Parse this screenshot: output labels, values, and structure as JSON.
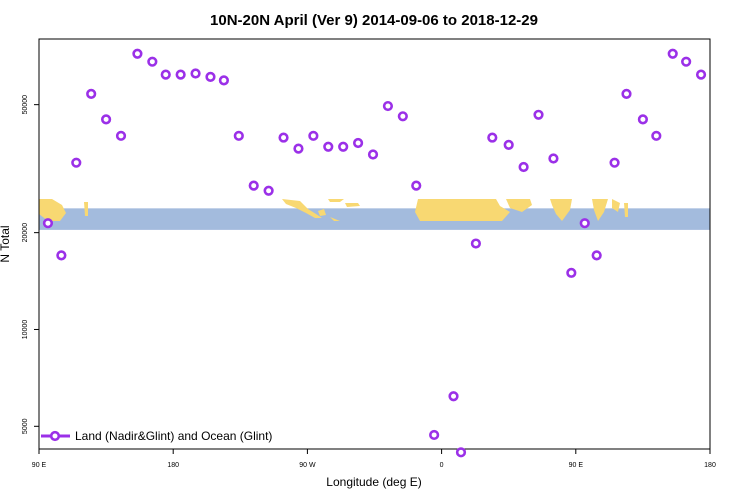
{
  "chart_data": {
    "type": "scatter",
    "title": "10N-20N April (Ver 9)   2014-09-06 to 2018-12-29",
    "xlabel": "Longitude (deg E)",
    "ylabel": "N Total",
    "x_scale": "linear",
    "y_scale": "log",
    "xlim": [
      90,
      540
    ],
    "ylim": [
      4250,
      80000
    ],
    "x_ticks": [
      {
        "value": 90,
        "label": "90 E"
      },
      {
        "value": 180,
        "label": "180"
      },
      {
        "value": 270,
        "label": "90 W"
      },
      {
        "value": 360,
        "label": "0"
      },
      {
        "value": 450,
        "label": "90 E"
      },
      {
        "value": 540,
        "label": "180"
      }
    ],
    "y_ticks": [
      {
        "value": 5000,
        "label": "5000"
      },
      {
        "value": 10000,
        "label": "10000"
      },
      {
        "value": 20000,
        "label": "20000"
      },
      {
        "value": 50000,
        "label": "50000"
      }
    ],
    "grid": false,
    "legend_position": "bottom-left",
    "map_band_y": [
      20400,
      23800
    ],
    "colors": {
      "series": "#9b30e8",
      "ocean": "#a3bbdd",
      "land": "#f8d872"
    },
    "series": [
      {
        "name": "Land (Nadir&Glint) and Ocean (Glint)",
        "x": [
          96,
          105,
          115,
          125,
          135,
          145,
          156,
          166,
          175,
          185,
          195,
          205,
          214,
          224,
          234,
          244,
          254,
          264,
          274,
          284,
          294,
          304,
          314,
          324,
          334,
          343,
          355,
          368,
          373,
          383,
          394,
          405,
          415,
          425,
          435,
          447,
          456,
          464,
          476,
          484,
          495,
          504,
          515,
          524,
          534
        ],
        "y": [
          21400,
          17000,
          33000,
          54000,
          45000,
          40000,
          72000,
          68000,
          62000,
          62000,
          62500,
          61000,
          59500,
          40000,
          28000,
          27000,
          39500,
          36500,
          40000,
          37000,
          37000,
          38000,
          35000,
          49500,
          46000,
          28000,
          4700,
          6200,
          4150,
          18500,
          39500,
          37500,
          32000,
          46500,
          34000,
          15000,
          21400,
          17000,
          33000,
          54000,
          45000,
          40000,
          72000,
          68000,
          62000
        ]
      }
    ]
  }
}
